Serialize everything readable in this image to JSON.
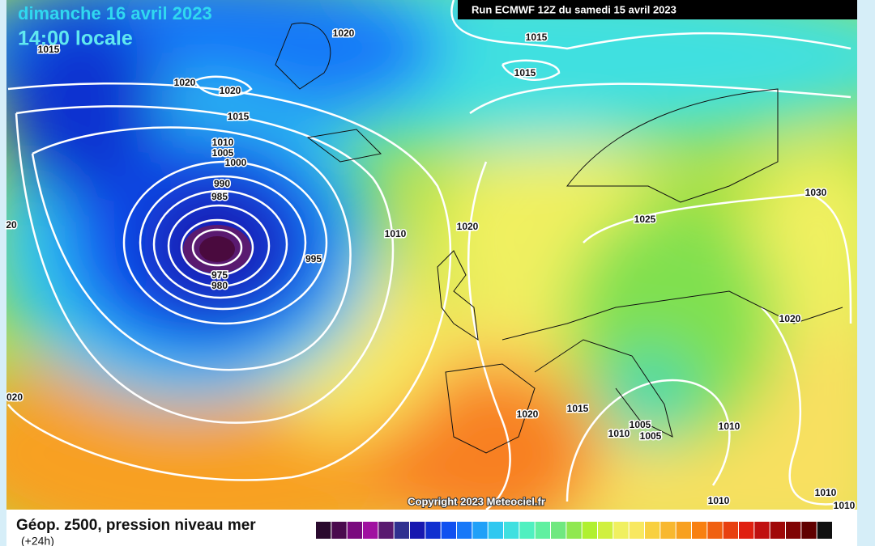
{
  "header": {
    "date": "dimanche 16 avril 2023",
    "time": "14:00 locale",
    "run": "Run ECMWF 12Z du samedi 15 avril 2023"
  },
  "map": {
    "isobar_labels": [
      "1015",
      "1020",
      "1015",
      "1015",
      "1020",
      "1020",
      "1015",
      "1010",
      "1005",
      "1000",
      "990",
      "985",
      "995",
      "975",
      "980",
      "1010",
      "1020",
      "1025",
      "1030",
      "1020",
      "20",
      "020",
      "1020",
      "1015",
      "1005",
      "1010",
      "1005",
      "1010",
      "1010",
      "1010",
      "1010"
    ],
    "copyright": "Copyright 2023 Meteociel.fr"
  },
  "footer": {
    "title": "Géop. z500, pression niveau mer",
    "subtitle": "(+24h)",
    "colorbar": [
      "#2a0a2e",
      "#4a0a4e",
      "#7a0a7e",
      "#a010a0",
      "#5a1a70",
      "#303090",
      "#1818b0",
      "#1030d0",
      "#1050f0",
      "#1878f8",
      "#20a0f8",
      "#30c8f0",
      "#40e0e0",
      "#50f0c0",
      "#60f0a0",
      "#70e880",
      "#90e850",
      "#b0f030",
      "#d0f040",
      "#f0f060",
      "#f8e860",
      "#f8d040",
      "#f8b830",
      "#f8a020",
      "#f88010",
      "#f06010",
      "#e84010",
      "#e02010",
      "#c01010",
      "#a00808",
      "#800404",
      "#600000",
      "#101010"
    ]
  }
}
